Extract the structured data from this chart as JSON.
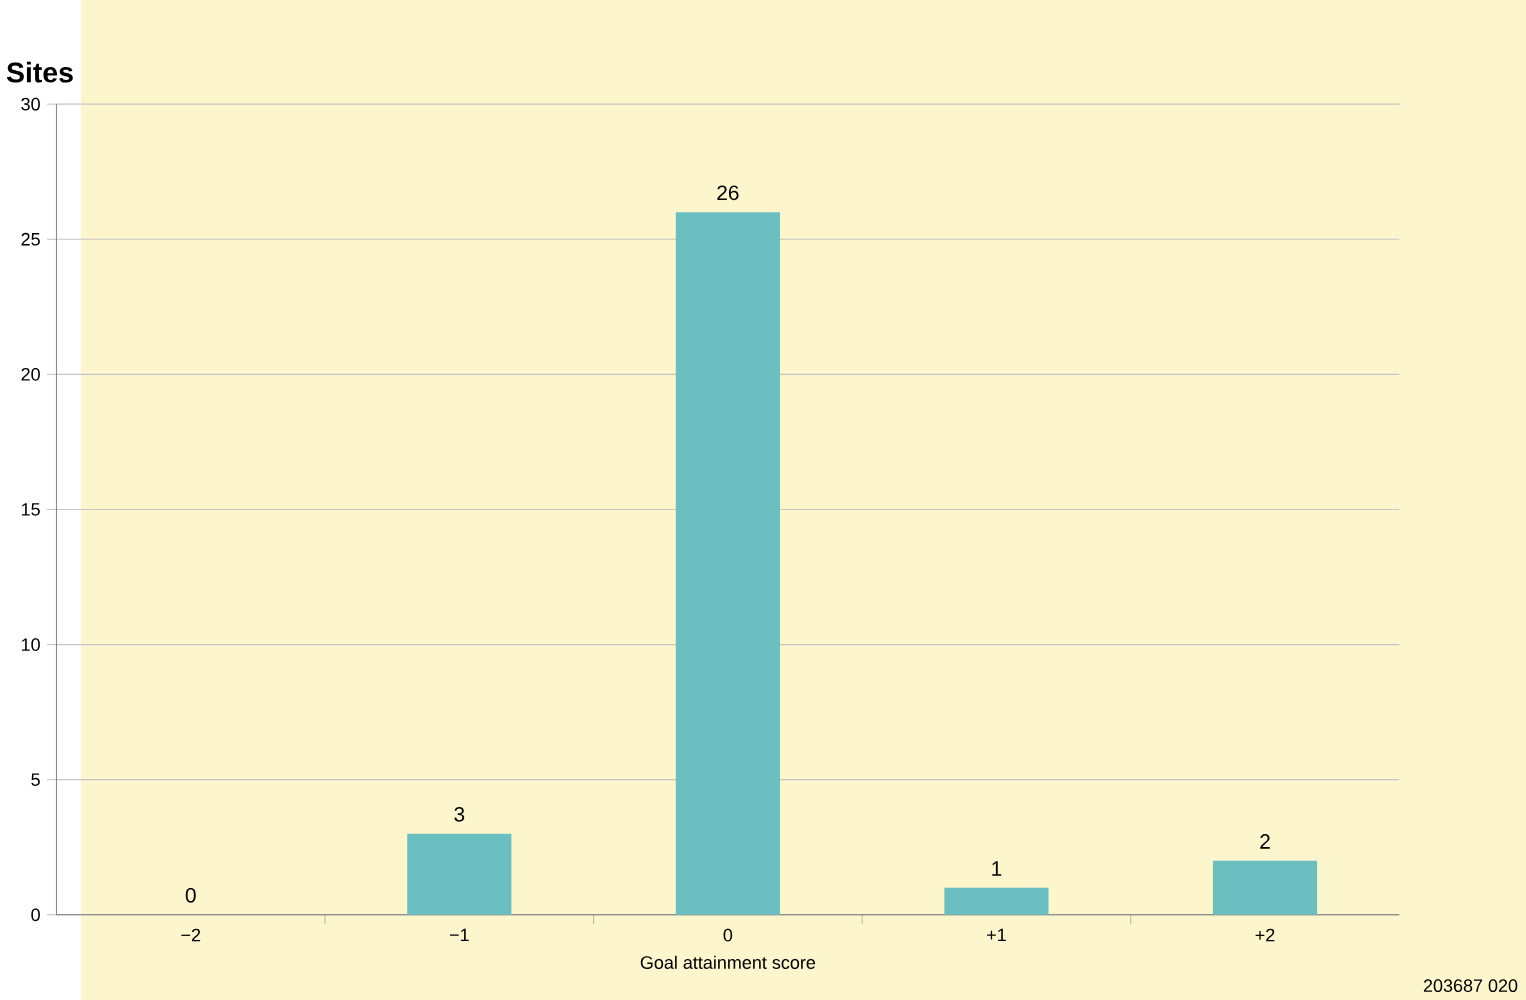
{
  "chart_data": {
    "type": "bar",
    "ylabel": "Sites",
    "xlabel": "Goal attainment score",
    "categories": [
      "−2",
      "−1",
      "0",
      "+1",
      "+2"
    ],
    "values": [
      0,
      3,
      26,
      1,
      2
    ],
    "color": "#6bbfc1",
    "ylim": [
      0,
      30
    ],
    "yticks": [
      0,
      5,
      10,
      15,
      20,
      25,
      30
    ],
    "grid": "y",
    "data_labels": true,
    "annotations": [
      "203687  020"
    ]
  }
}
